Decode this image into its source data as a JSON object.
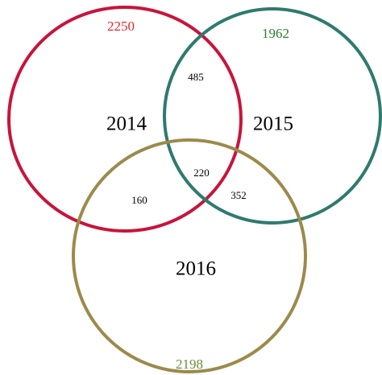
{
  "sets": [
    {
      "label": "2014",
      "total": 2250
    },
    {
      "label": "2015",
      "total": 1962
    },
    {
      "label": "2016",
      "total": 2198
    }
  ],
  "overlaps": [
    {
      "value": 485
    },
    {
      "value": 220
    },
    {
      "value": 160
    },
    {
      "value": 352
    }
  ]
}
